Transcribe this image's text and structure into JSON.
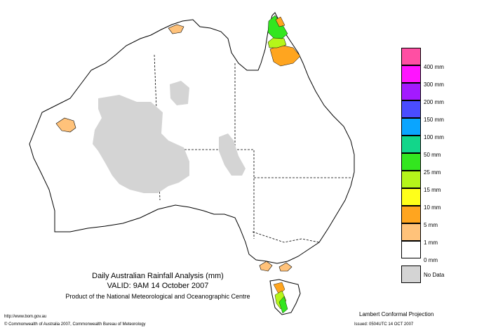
{
  "title": {
    "line1": "Daily Australian Rainfall Analysis (mm)",
    "line2": "VALID: 9AM 14 October 2007",
    "line3": "Product of the National Meteorological and Oceanographic Centre"
  },
  "footer": {
    "url": "http://www.bom.gov.au",
    "copyright": "© Commonwealth of Australia 2007, Commonwealth Bureau of Meteorology",
    "projection": "Lambert Conformal Projection",
    "issued": "Issued: 0504UTC 14 OCT 2007"
  },
  "legend": {
    "items": [
      {
        "label": "400 mm",
        "color": "#ff4fa3"
      },
      {
        "label": "300 mm",
        "color": "#ff14ff"
      },
      {
        "label": "200 mm",
        "color": "#a31aff"
      },
      {
        "label": "150 mm",
        "color": "#4a4cff"
      },
      {
        "label": "100 mm",
        "color": "#0aa5ff"
      },
      {
        "label": "50 mm",
        "color": "#12d68a"
      },
      {
        "label": "25 mm",
        "color": "#33e61f"
      },
      {
        "label": "15 mm",
        "color": "#b5f51a"
      },
      {
        "label": "10 mm",
        "color": "#ffff1a"
      },
      {
        "label": "5 mm",
        "color": "#ffa51f"
      },
      {
        "label": "1 mm",
        "color": "#ffc27a"
      },
      {
        "label": "0 mm",
        "color": "#ffffff"
      },
      {
        "label": "No Data",
        "color": "#d4d4d4"
      }
    ]
  },
  "colors": {
    "no_data": "#d4d4d4",
    "rain_1mm": "#ffc27a",
    "rain_5mm": "#ffa51f",
    "rain_15mm": "#b5f51a",
    "rain_25mm": "#33e61f",
    "outline": "#000000"
  }
}
